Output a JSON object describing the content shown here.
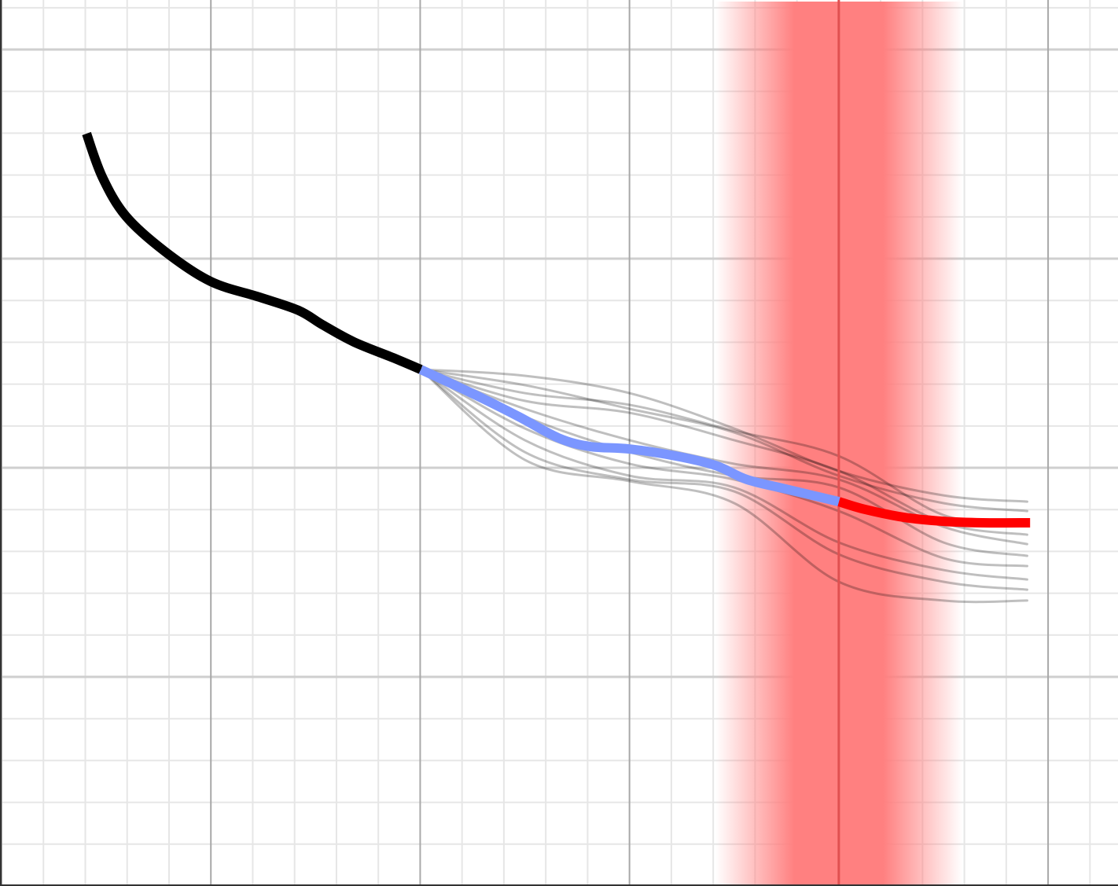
{
  "chart_data": {
    "type": "line",
    "xlim": [
      0,
      5.334
    ],
    "ylim": [
      -1,
      3.237
    ],
    "xticks": [
      0,
      1,
      2,
      3,
      4,
      5
    ],
    "xminorticks": [
      0.2,
      0.4,
      0.6,
      0.8,
      1.2,
      1.4,
      1.6,
      1.8,
      2.2,
      2.4,
      2.6,
      2.8,
      3.2,
      3.4,
      3.6,
      3.8,
      4.2,
      4.4,
      4.6,
      4.8,
      5.2
    ],
    "yticks": [
      0,
      1,
      2,
      3
    ],
    "yminorticks": [
      -0.8,
      -0.6,
      -0.4,
      -0.2,
      0.2,
      0.4,
      0.6,
      0.8,
      1.2,
      1.4,
      1.6,
      1.8,
      2.2,
      2.4,
      2.6,
      2.8,
      3.2
    ],
    "grid": true,
    "band": {
      "center": 4.0,
      "halfwidth": 0.59,
      "color": "#ff8080",
      "line_color": "#e05050"
    },
    "series": [
      {
        "color": "rgba(0,0,0,0.25)",
        "width": 3,
        "x": [
          2.003,
          2.5,
          3.0,
          3.5,
          4.0,
          4.5,
          4.9
        ],
        "values": [
          1.47,
          1.44,
          1.357,
          1.188,
          0.985,
          0.868,
          0.838
        ]
      },
      {
        "color": "rgba(0,0,0,0.25)",
        "width": 3,
        "x": [
          2.003,
          2.5,
          3.0,
          3.5,
          4.0,
          4.5,
          4.9
        ],
        "values": [
          1.47,
          1.395,
          1.282,
          1.169,
          0.962,
          0.831,
          0.793
        ]
      },
      {
        "color": "rgba(0,0,0,0.25)",
        "width": 3,
        "x": [
          2.003,
          2.5,
          3.0,
          3.5,
          4.0,
          4.5,
          4.9
        ],
        "values": [
          1.47,
          1.357,
          1.301,
          1.177,
          1.056,
          0.774,
          0.737
        ]
      },
      {
        "color": "rgba(0,0,0,0.25)",
        "width": 3,
        "x": [
          2.003,
          2.5,
          3.0,
          3.5,
          4.0,
          4.5,
          4.9
        ],
        "values": [
          1.47,
          1.32,
          1.263,
          1.132,
          0.985,
          0.737,
          0.68
        ]
      },
      {
        "color": "rgba(0,0,0,0.25)",
        "width": 3,
        "x": [
          2.003,
          2.5,
          3.0,
          3.5,
          4.0,
          4.5,
          4.9
        ],
        "values": [
          1.47,
          1.282,
          1.132,
          1.019,
          0.944,
          0.718,
          0.635
        ]
      },
      {
        "color": "rgba(0,0,0,0.25)",
        "width": 3,
        "x": [
          2.003,
          2.5,
          3.0,
          3.5,
          4.0,
          4.5,
          4.9
        ],
        "values": [
          1.47,
          1.244,
          1.075,
          0.962,
          0.906,
          0.643,
          0.579
        ]
      },
      {
        "color": "rgba(0,0,0,0.25)",
        "width": 3,
        "x": [
          2.003,
          2.5,
          3.0,
          3.5,
          4.0,
          4.5,
          4.9
        ],
        "values": [
          1.47,
          1.188,
          1.019,
          0.944,
          0.793,
          0.568,
          0.53
        ]
      },
      {
        "color": "rgba(0,0,0,0.25)",
        "width": 3,
        "x": [
          2.003,
          2.5,
          3.0,
          3.5,
          4.0,
          4.5,
          4.9
        ],
        "values": [
          1.47,
          1.132,
          0.962,
          0.906,
          0.643,
          0.511,
          0.466
        ]
      },
      {
        "color": "rgba(0,0,0,0.25)",
        "width": 3,
        "x": [
          2.003,
          2.5,
          3.0,
          3.5,
          4.0,
          4.5,
          4.9
        ],
        "values": [
          1.47,
          1.075,
          0.944,
          0.887,
          0.586,
          0.455,
          0.417
        ]
      },
      {
        "color": "rgba(0,0,0,0.25)",
        "width": 3,
        "x": [
          2.003,
          2.5,
          3.0,
          3.5,
          4.0,
          4.5,
          4.9
        ],
        "values": [
          1.47,
          1.038,
          0.936,
          0.831,
          0.455,
          0.365,
          0.365
        ]
      },
      {
        "color": "#000000",
        "width": 12,
        "x": [
          0.406,
          0.481,
          0.594,
          0.781,
          0.999,
          1.232,
          1.42,
          1.533,
          1.683,
          1.871,
          2.003
        ],
        "values": [
          2.598,
          2.391,
          2.203,
          2.034,
          1.891,
          1.816,
          1.752,
          1.684,
          1.602,
          1.526,
          1.47
        ]
      },
      {
        "color": "#7b96ff",
        "width": 12,
        "x": [
          2.003,
          2.246,
          2.472,
          2.66,
          2.81,
          2.998,
          3.223,
          3.411,
          3.561,
          3.749,
          4.001
        ],
        "values": [
          1.47,
          1.357,
          1.244,
          1.143,
          1.102,
          1.09,
          1.056,
          1.011,
          0.944,
          0.898,
          0.838
        ]
      },
      {
        "color": "#ff0000",
        "width": 12,
        "x": [
          4.001,
          4.125,
          4.312,
          4.5,
          4.688,
          4.914
        ],
        "values": [
          0.838,
          0.801,
          0.763,
          0.744,
          0.737,
          0.737
        ]
      }
    ]
  }
}
